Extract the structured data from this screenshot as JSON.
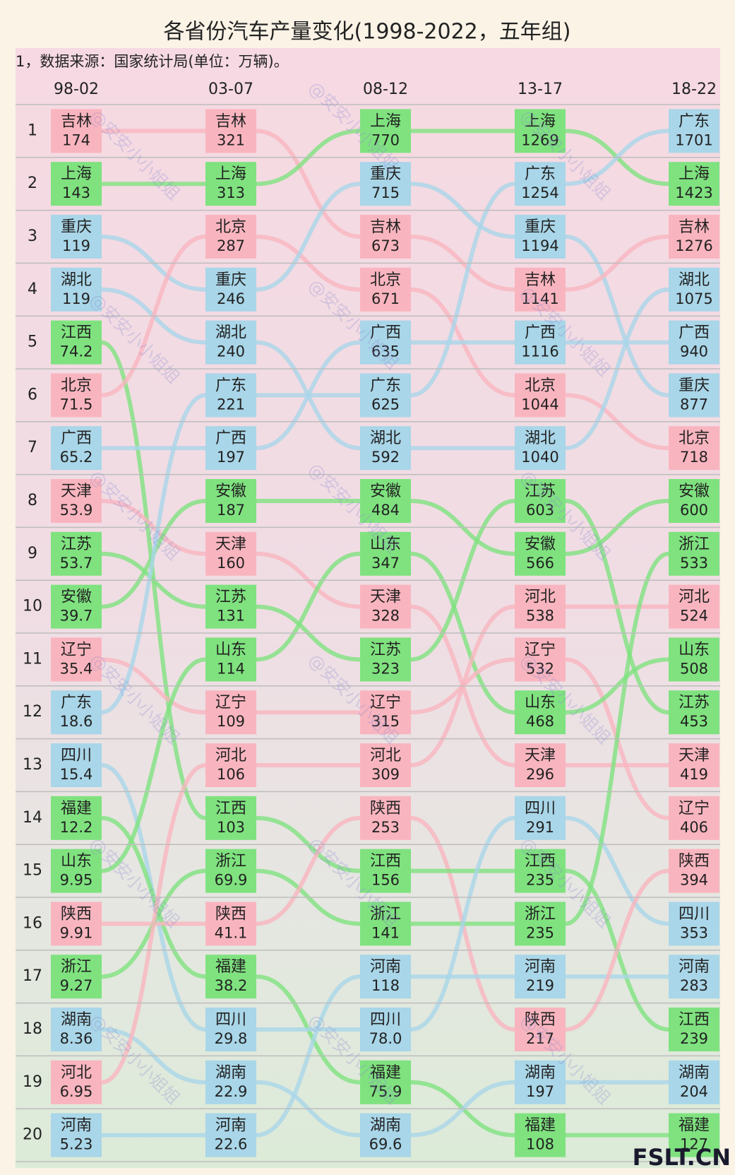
{
  "chart_data": {
    "type": "bump",
    "title": "各省份汽车产量变化(1998-2022，五年组)",
    "subtitle": "1，数据来源：国家统计局(单位：万辆)。",
    "watermark": "@安安小小姐姐",
    "logo": "FSLT.CN",
    "ranks": [
      1,
      2,
      3,
      4,
      5,
      6,
      7,
      8,
      9,
      10,
      11,
      12,
      13,
      14,
      15,
      16,
      17,
      18,
      19,
      20
    ],
    "colors": {
      "吉林": "#f9b5bf",
      "上海": "#7fe27f",
      "重庆": "#a9d6e8",
      "湖北": "#a9d6e8",
      "江西": "#7fe27f",
      "北京": "#f9b5bf",
      "广西": "#a9d6e8",
      "天津": "#f9b5bf",
      "江苏": "#7fe27f",
      "安徽": "#7fe27f",
      "辽宁": "#f9b5bf",
      "广东": "#a9d6e8",
      "四川": "#a9d6e8",
      "福建": "#7fe27f",
      "山东": "#7fe27f",
      "陕西": "#f9b5bf",
      "浙江": "#7fe27f",
      "湖南": "#a9d6e8",
      "河北": "#f9b5bf",
      "河南": "#a9d6e8"
    },
    "columns": [
      {
        "label": "98-02",
        "names": [
          "吉林",
          "上海",
          "重庆",
          "湖北",
          "江西",
          "北京",
          "广西",
          "天津",
          "江苏",
          "安徽",
          "辽宁",
          "广东",
          "四川",
          "福建",
          "山东",
          "陕西",
          "浙江",
          "湖南",
          "河北",
          "河南"
        ],
        "values": [
          174,
          143,
          119,
          119,
          74.2,
          71.5,
          65.2,
          53.9,
          53.7,
          39.7,
          35.4,
          18.6,
          15.4,
          12.2,
          9.95,
          9.91,
          9.27,
          8.36,
          6.95,
          5.23
        ]
      },
      {
        "label": "03-07",
        "names": [
          "吉林",
          "上海",
          "北京",
          "重庆",
          "湖北",
          "广东",
          "广西",
          "安徽",
          "天津",
          "江苏",
          "山东",
          "辽宁",
          "河北",
          "江西",
          "浙江",
          "陕西",
          "福建",
          "四川",
          "湖南",
          "河南"
        ],
        "values": [
          321,
          313,
          287,
          246,
          240,
          221,
          197,
          187,
          160,
          131,
          114,
          109,
          106,
          103,
          69.9,
          41.1,
          38.2,
          29.8,
          22.9,
          22.6
        ]
      },
      {
        "label": "08-12",
        "names": [
          "上海",
          "重庆",
          "吉林",
          "北京",
          "广西",
          "广东",
          "湖北",
          "安徽",
          "山东",
          "天津",
          "江苏",
          "辽宁",
          "河北",
          "陕西",
          "江西",
          "浙江",
          "河南",
          "四川",
          "福建",
          "湖南"
        ],
        "values": [
          770,
          715,
          673,
          671,
          635,
          625,
          592,
          484,
          347,
          328,
          323,
          315,
          309,
          253,
          156,
          141,
          118,
          78,
          75.9,
          69.6
        ],
        "value_labels": [
          "770",
          "715",
          "673",
          "671",
          "635",
          "625",
          "592",
          "484",
          "347",
          "328",
          "323",
          "315",
          "309",
          "253",
          "156",
          "141",
          "118",
          "78.0",
          "75.9",
          "69.6"
        ]
      },
      {
        "label": "13-17",
        "names": [
          "上海",
          "广东",
          "重庆",
          "吉林",
          "广西",
          "北京",
          "湖北",
          "江苏",
          "安徽",
          "河北",
          "辽宁",
          "山东",
          "天津",
          "四川",
          "江西",
          "浙江",
          "河南",
          "陕西",
          "湖南",
          "福建"
        ],
        "values": [
          1269,
          1254,
          1194,
          1141,
          1116,
          1044,
          1040,
          603,
          566,
          538,
          532,
          468,
          296,
          291,
          235,
          235,
          219,
          217,
          197,
          108
        ]
      },
      {
        "label": "18-22",
        "names": [
          "广东",
          "上海",
          "吉林",
          "湖北",
          "广西",
          "重庆",
          "北京",
          "安徽",
          "浙江",
          "河北",
          "山东",
          "江苏",
          "天津",
          "辽宁",
          "陕西",
          "四川",
          "河南",
          "江西",
          "湖南",
          "福建"
        ],
        "values": [
          1701,
          1423,
          1276,
          1075,
          940,
          877,
          718,
          600,
          533,
          524,
          508,
          453,
          419,
          406,
          394,
          353,
          283,
          239,
          204,
          127
        ]
      }
    ]
  }
}
